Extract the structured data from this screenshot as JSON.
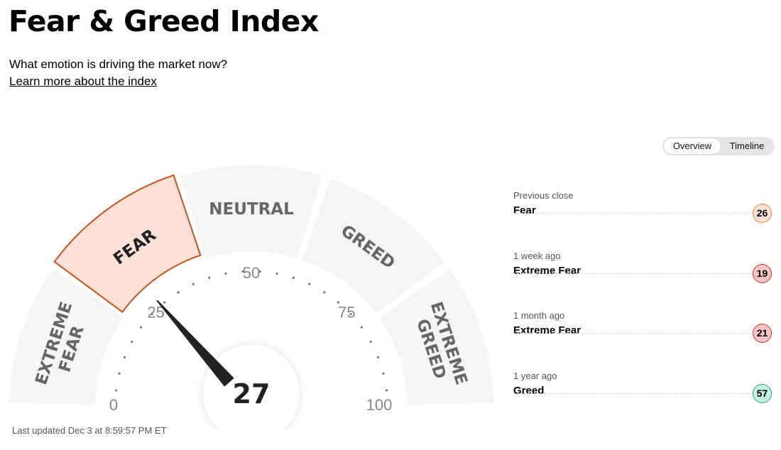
{
  "header": {
    "title": "Fear & Greed Index",
    "subtitle": "What emotion is driving the market now?",
    "learn_more": "Learn more about the index"
  },
  "view_toggle": {
    "overview": "Overview",
    "timeline": "Timeline",
    "selected": "Overview"
  },
  "gauge": {
    "value": 27,
    "value_label": "27",
    "active_segment": "FEAR",
    "segments": [
      {
        "lines": [
          "EXTREME",
          "FEAR"
        ]
      },
      {
        "lines": [
          "FEAR"
        ]
      },
      {
        "lines": [
          "NEUTRAL"
        ]
      },
      {
        "lines": [
          "GREED"
        ]
      },
      {
        "lines": [
          "EXTREME",
          "GREED"
        ]
      }
    ],
    "scale_labels": [
      "0",
      "25",
      "50",
      "75",
      "100"
    ],
    "colors": {
      "segment": "#f5f5f5",
      "active_fill": "#fde0d6",
      "active_stroke": "#c8531a",
      "label": "#666666",
      "needle": "#222222"
    }
  },
  "last_updated": "Last updated Dec 3 at 8:59:57 PM ET",
  "history": [
    {
      "label": "Previous close",
      "rating": "Fear",
      "value": "26",
      "fill": "#fde0d6",
      "stroke": "#e8833a"
    },
    {
      "label": "1 week ago",
      "rating": "Extreme Fear",
      "value": "19",
      "fill": "#f8c4c4",
      "stroke": "#c0392b"
    },
    {
      "label": "1 month ago",
      "rating": "Extreme Fear",
      "value": "21",
      "fill": "#f8c4c4",
      "stroke": "#c0392b"
    },
    {
      "label": "1 year ago",
      "rating": "Greed",
      "value": "57",
      "fill": "#c5efe2",
      "stroke": "#2aa884"
    }
  ]
}
